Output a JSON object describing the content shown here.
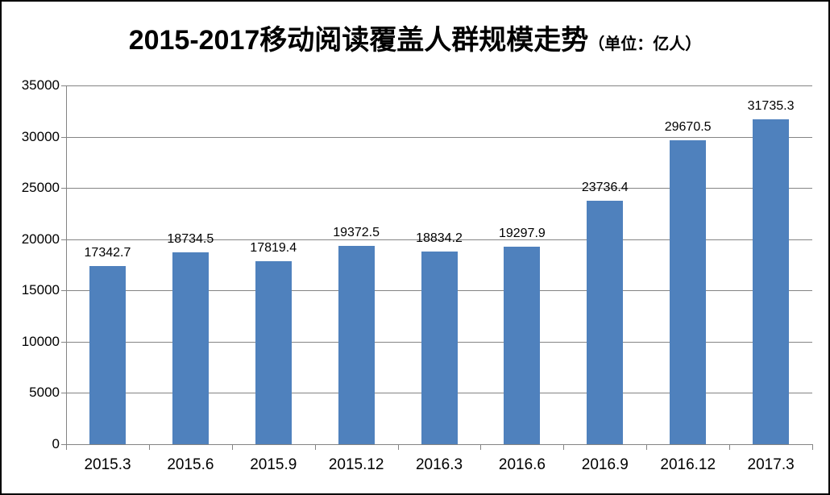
{
  "title": {
    "main": "2015-2017移动阅读覆盖人群规模走势",
    "unit": "（单位：亿人）"
  },
  "chart_data": {
    "type": "bar",
    "title": "2015-2017移动阅读覆盖人群规模走势（单位：亿人）",
    "categories": [
      "2015.3",
      "2015.6",
      "2015.9",
      "2015.12",
      "2016.3",
      "2016.6",
      "2016.9",
      "2016.12",
      "2017.3"
    ],
    "values": [
      17342.7,
      18734.5,
      17819.4,
      19372.5,
      18834.2,
      19297.9,
      23736.4,
      29670.5,
      31735.3
    ],
    "data_labels": [
      "17342.7",
      "18734.5",
      "17819.4",
      "19372.5",
      "18834.2",
      "19297.9",
      "23736.4",
      "29670.5",
      "31735.3"
    ],
    "xlabel": "",
    "ylabel": "",
    "ylim": [
      0,
      35000
    ],
    "y_ticks": [
      0,
      5000,
      10000,
      15000,
      20000,
      25000,
      30000,
      35000
    ],
    "grid": true,
    "legend": false,
    "bar_color": "#4F81BD",
    "axis_color": "#848484",
    "background_color": "#FFFFFF",
    "border_color": "#000000",
    "text_color": "#000000"
  }
}
